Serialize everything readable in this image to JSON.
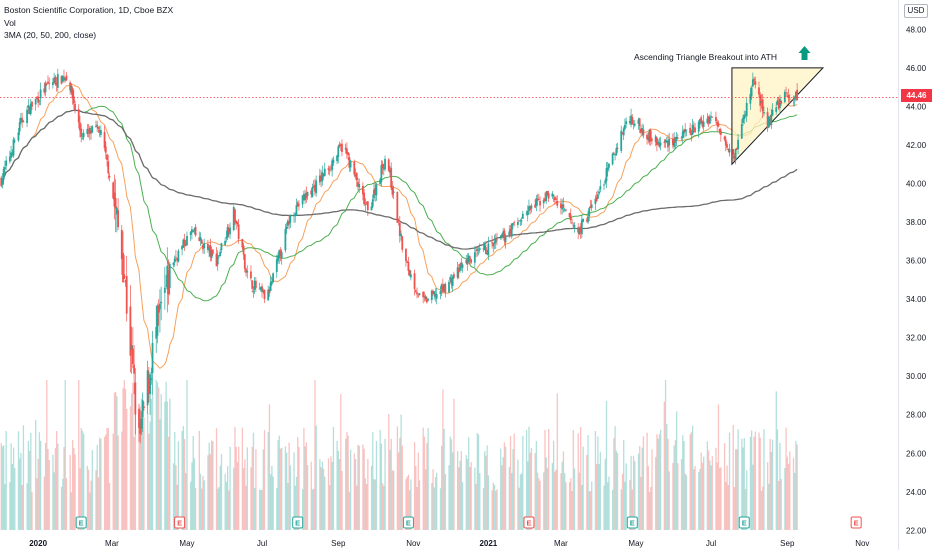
{
  "header": {
    "symbol": "Boston Scientific Corporation, 1D, Cboe BZX",
    "volume_label": "Vol",
    "indicator_label": "3MA (20, 50, 200, close)"
  },
  "currency": "USD",
  "last_price": "44.46",
  "annotation": "Ascending Triangle Breakout into ATH",
  "colors": {
    "up": "#26a69a",
    "down": "#ef5350",
    "ma20": "#f7a15b",
    "ma50": "#4caf50",
    "ma200": "#6b6b6b",
    "triangle_fill": "#fff3c4",
    "arrow": "#089981",
    "price_line": "#f23645"
  },
  "chart_data": {
    "type": "candlestick",
    "title": "Boston Scientific Corporation, 1D, Cboe BZX",
    "y_axis": {
      "ticks": [
        "22.00",
        "24.00",
        "26.00",
        "28.00",
        "30.00",
        "32.00",
        "34.00",
        "36.00",
        "38.00",
        "40.00",
        "42.00",
        "44.00",
        "46.00",
        "48.00"
      ],
      "range": [
        21.5,
        49
      ]
    },
    "x_axis": {
      "ticks": [
        "2020",
        "Mar",
        "May",
        "Jul",
        "Sep",
        "Nov",
        "2021",
        "Mar",
        "May",
        "Jul",
        "Sep",
        "Nov"
      ],
      "range": [
        "2019-12-01",
        "2021-11-30"
      ]
    },
    "price_path": [
      {
        "date": "2019-12-01",
        "close": 40.0
      },
      {
        "date": "2019-12-20",
        "close": 43.5
      },
      {
        "date": "2020-01-10",
        "close": 45.2
      },
      {
        "date": "2020-01-25",
        "close": 45.6
      },
      {
        "date": "2020-02-05",
        "close": 42.5
      },
      {
        "date": "2020-02-20",
        "close": 42.8
      },
      {
        "date": "2020-02-28",
        "close": 40.5
      },
      {
        "date": "2020-03-10",
        "close": 36.0
      },
      {
        "date": "2020-03-23",
        "close": 26.5
      },
      {
        "date": "2020-04-05",
        "close": 32.0
      },
      {
        "date": "2020-04-20",
        "close": 36.0
      },
      {
        "date": "2020-05-05",
        "close": 37.5
      },
      {
        "date": "2020-05-25",
        "close": 36.0
      },
      {
        "date": "2020-06-08",
        "close": 38.5
      },
      {
        "date": "2020-06-20",
        "close": 35.0
      },
      {
        "date": "2020-07-05",
        "close": 34.0
      },
      {
        "date": "2020-07-25",
        "close": 38.5
      },
      {
        "date": "2020-08-15",
        "close": 40.0
      },
      {
        "date": "2020-09-05",
        "close": 42.0
      },
      {
        "date": "2020-09-25",
        "close": 38.5
      },
      {
        "date": "2020-10-10",
        "close": 41.5
      },
      {
        "date": "2020-10-25",
        "close": 36.0
      },
      {
        "date": "2020-11-08",
        "close": 33.8
      },
      {
        "date": "2020-11-25",
        "close": 34.5
      },
      {
        "date": "2020-12-15",
        "close": 36.0
      },
      {
        "date": "2021-01-10",
        "close": 37.0
      },
      {
        "date": "2021-02-01",
        "close": 38.5
      },
      {
        "date": "2021-02-20",
        "close": 39.5
      },
      {
        "date": "2021-03-15",
        "close": 37.5
      },
      {
        "date": "2021-04-01",
        "close": 39.5
      },
      {
        "date": "2021-04-25",
        "close": 43.5
      },
      {
        "date": "2021-05-20",
        "close": 42.0
      },
      {
        "date": "2021-06-10",
        "close": 42.5
      },
      {
        "date": "2021-07-01",
        "close": 43.5
      },
      {
        "date": "2021-07-20",
        "close": 41.5
      },
      {
        "date": "2021-08-05",
        "close": 45.5
      },
      {
        "date": "2021-08-15",
        "close": 43.0
      },
      {
        "date": "2021-08-28",
        "close": 44.5
      },
      {
        "date": "2021-09-09",
        "close": 44.46
      }
    ],
    "moving_averages": [
      {
        "name": "MA 20",
        "period": 20,
        "color": "#f7a15b"
      },
      {
        "name": "MA 50",
        "period": 50,
        "color": "#4caf50"
      },
      {
        "name": "MA 200",
        "period": 200,
        "color": "#6b6b6b"
      }
    ],
    "earnings_markers": [
      {
        "date": "2020-02-05",
        "type": "E",
        "color": "#26a69a"
      },
      {
        "date": "2020-04-25",
        "type": "E",
        "color": "#ef5350"
      },
      {
        "date": "2020-07-30",
        "type": "E",
        "color": "#26a69a"
      },
      {
        "date": "2020-10-28",
        "type": "E",
        "color": "#26a69a"
      },
      {
        "date": "2021-02-03",
        "type": "E",
        "color": "#ef5350"
      },
      {
        "date": "2021-04-28",
        "type": "E",
        "color": "#26a69a"
      },
      {
        "date": "2021-07-28",
        "type": "E",
        "color": "#26a69a"
      },
      {
        "date": "2021-10-27",
        "type": "E",
        "color": "#ef5350"
      }
    ],
    "triangle": {
      "top_left": {
        "date": "2021-07-18",
        "price": 46.0
      },
      "top_right": {
        "date": "2021-09-30",
        "price": 46.0
      },
      "bottom": {
        "date": "2021-07-18",
        "price": 41.0
      }
    },
    "annotation_text": "Ascending Triangle Breakout into ATH",
    "grid": false
  }
}
